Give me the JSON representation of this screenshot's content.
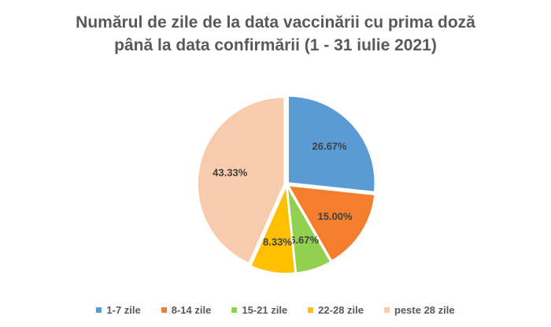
{
  "chart_data": {
    "type": "pie",
    "title_lines": [
      "Numărul de zile de la data vaccinării cu prima doză",
      "până la data confirmării (1 - 31 iulie 2021)"
    ],
    "categories": [
      "1-7 zile",
      "8-14 zile",
      "15-21 zile",
      "22-28 zile",
      "peste 28 zile"
    ],
    "values": [
      26.67,
      15.0,
      6.67,
      8.33,
      43.33
    ],
    "labels": [
      "26.67%",
      "15.00%",
      "6.67%",
      "8.33%",
      "43.33%"
    ],
    "colors": [
      "#5b9bd5",
      "#f47e2e",
      "#92d050",
      "#ffc000",
      "#f8cbad"
    ],
    "legend_position": "bottom"
  }
}
